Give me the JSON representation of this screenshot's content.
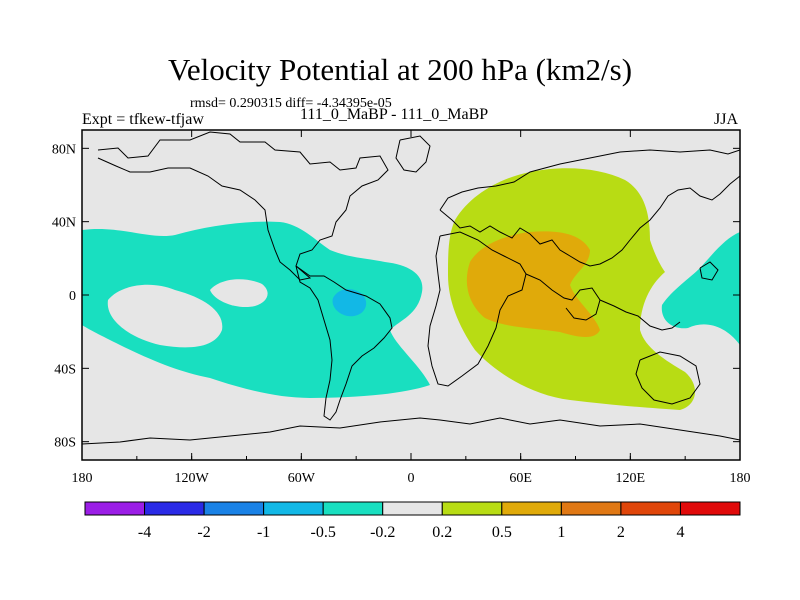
{
  "title": "Velocity Potential at 200 hPa (km2/s)",
  "stats": "rmsd= 0.290315 diff= -4.34395e-05",
  "left_label": "Expt = tfkew-tfjaw",
  "center_label": "111_0_MaBP - 111_0_MaBP",
  "right_label": "JJA",
  "map": {
    "lon_ticks": [
      "180",
      "120W",
      "60W",
      "0",
      "60E",
      "120E",
      "180"
    ],
    "lat_ticks": [
      "80N",
      "40N",
      "0",
      "40S",
      "80S"
    ],
    "lon_range": [
      -180,
      180
    ],
    "lat_range": [
      -90,
      90
    ],
    "background_color": "#e6e6e6"
  },
  "colorbar": {
    "colors": [
      "#9b1ee6",
      "#2a2ae6",
      "#1a82e6",
      "#12b8e6",
      "#19dfc0",
      "#e6e6e6",
      "#b8dc14",
      "#e0aa0a",
      "#e07814",
      "#e0460a",
      "#e00a0a"
    ],
    "labels": [
      "-4",
      "-2",
      "-1",
      "-0.5",
      "-0.2",
      "0.2",
      "0.5",
      "1",
      "2",
      "4"
    ]
  }
}
